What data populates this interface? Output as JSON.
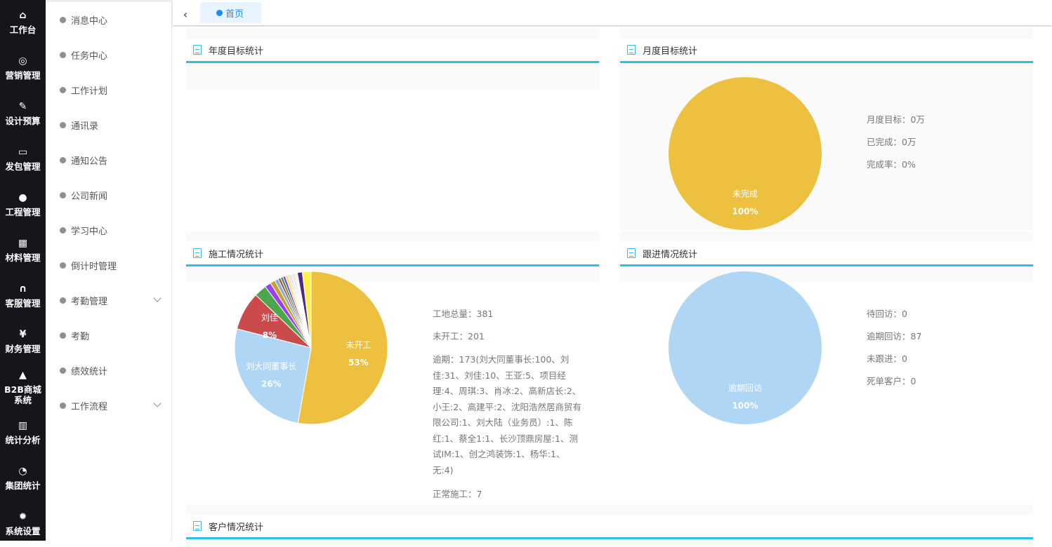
{
  "nav": [
    {
      "icon": "home-icon",
      "glyph": "⌂",
      "label": "工作台"
    },
    {
      "icon": "chat-icon",
      "glyph": "◎",
      "label": "营销管理"
    },
    {
      "icon": "edit-icon",
      "glyph": "✎",
      "label": "设计预算"
    },
    {
      "icon": "monitor-icon",
      "glyph": "▭",
      "label": "发包管理"
    },
    {
      "icon": "users-icon",
      "glyph": "●",
      "label": "工程管理"
    },
    {
      "icon": "grid-icon",
      "glyph": "▦",
      "label": "材料管理"
    },
    {
      "icon": "headset-icon",
      "glyph": "∩",
      "label": "客服管理"
    },
    {
      "icon": "yen-icon",
      "glyph": "¥",
      "label": "财务管理"
    },
    {
      "icon": "shopping-bag-icon",
      "glyph": "▲",
      "label": "B2B商城系统"
    },
    {
      "icon": "bar-chart-icon",
      "glyph": "▥",
      "label": "统计分析"
    },
    {
      "icon": "pie-chart-icon",
      "glyph": "◔",
      "label": "集团统计"
    },
    {
      "icon": "gear-icon",
      "glyph": "✹",
      "label": "系统设置"
    }
  ],
  "submenu": [
    {
      "label": "消息中心"
    },
    {
      "label": "任务中心"
    },
    {
      "label": "工作计划"
    },
    {
      "label": "通讯录"
    },
    {
      "label": "通知公告"
    },
    {
      "label": "公司新闻"
    },
    {
      "label": "学习中心"
    },
    {
      "label": "倒计时管理"
    },
    {
      "label": "考勤管理",
      "expandable": true
    },
    {
      "label": "考勤"
    },
    {
      "label": "绩效统计"
    },
    {
      "label": "工作流程",
      "expandable": true
    }
  ],
  "tabs": {
    "back_glyph": "‹",
    "active": "首页"
  },
  "cards": {
    "annual": "年度目标统计",
    "monthly": "月度目标统计",
    "construction": "施工情况统计",
    "followup": "跟进情况统计",
    "customer": "客户情况统计"
  },
  "monthly_info": [
    "月度目标：0万",
    "已完成：0万",
    "完成率：0%"
  ],
  "construction_info": {
    "total": "工地总量：381",
    "not_started": "未开工：201",
    "overdue": "逾期：173(刘大同董事长:100、刘佳:31、刘佳:10、王亚:5、项目经理:4、周琪:3、肖冰:2、高新店长:2、小王:2、高建平:2、沈阳浩然居商贸有限公司:1、刘大陆（业务员）:1、陈红:1、蔡全1:1、长沙顶鼎房屋:1、测试IM:1、创之鸿装饰:1、杨华:1、无:4)",
    "normal": "正常施工：7"
  },
  "followup_info": [
    "待回访：0",
    "逾期回访：87",
    "未跟进：0",
    "死单客户：0"
  ],
  "chart_data": [
    {
      "type": "pie",
      "id": "monthly",
      "slices": [
        {
          "name": "未完成",
          "value": 1,
          "label": "100%",
          "color": "#edc03f",
          "show_label": true
        }
      ]
    },
    {
      "type": "pie",
      "id": "construction",
      "slices": [
        {
          "name": "未开工",
          "value": 201,
          "label": "53%",
          "color": "#edc03f",
          "show_label": true
        },
        {
          "name": "刘大同董事长",
          "value": 100,
          "label": "26%",
          "color": "#b0d6f5",
          "show_label": true
        },
        {
          "name": "刘佳",
          "value": 31,
          "label": "8%",
          "color": "#c94b4b",
          "show_label": true
        },
        {
          "name": "刘佳",
          "value": 10,
          "color": "#4ca64c"
        },
        {
          "name": "王亚",
          "value": 5,
          "color": "#9b3ff0"
        },
        {
          "name": "项目经理",
          "value": 4,
          "color": "#c8a031"
        },
        {
          "name": "周琪",
          "value": 3,
          "color": "#8fb0c8"
        },
        {
          "name": "肖冰",
          "value": 2,
          "color": "#b04b4b"
        },
        {
          "name": "高新店长",
          "value": 2,
          "color": "#3a9a3a"
        },
        {
          "name": "小王",
          "value": 2,
          "color": "#7b3ff0"
        },
        {
          "name": "高建平",
          "value": 2,
          "color": "#f5e04b"
        },
        {
          "name": "沈阳浩然居商贸有限公司",
          "value": 1,
          "color": "#f3b0b0"
        },
        {
          "name": "刘大陆（业务员）",
          "value": 1,
          "color": "#b0e0b0"
        },
        {
          "name": "陈红",
          "value": 1,
          "color": "#d0b0f0"
        },
        {
          "name": "蔡全1",
          "value": 1,
          "color": "#f0e0b0"
        },
        {
          "name": "长沙顶鼎房屋",
          "value": 1,
          "color": "#c0d0e0"
        },
        {
          "name": "测试IM",
          "value": 1,
          "color": "#e0c0c0"
        },
        {
          "name": "创之鸿装饰",
          "value": 1,
          "color": "#e8e8e8"
        },
        {
          "name": "杨华",
          "value": 1,
          "color": "#d8d8f0"
        },
        {
          "name": "无",
          "value": 4,
          "color": "#4b2a8a"
        },
        {
          "name": "正常施工",
          "value": 7,
          "color": "#fff04b"
        }
      ]
    },
    {
      "type": "pie",
      "id": "followup",
      "slices": [
        {
          "name": "逾期回访",
          "value": 1,
          "label": "100%",
          "color": "#b0d6f5",
          "show_label": true
        }
      ]
    }
  ]
}
